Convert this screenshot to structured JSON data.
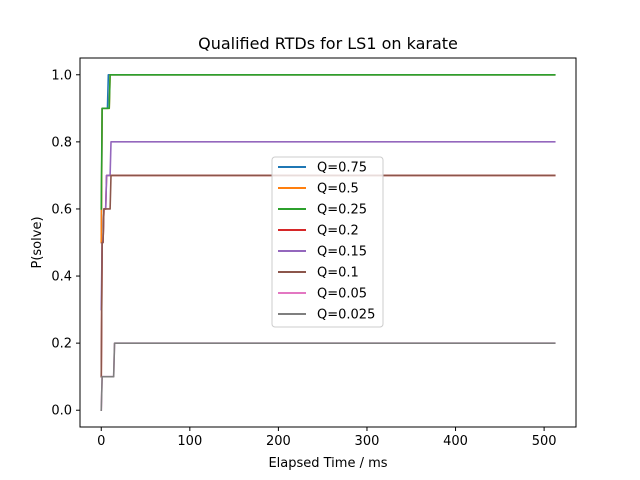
{
  "chart_data": {
    "type": "line",
    "title": "Qualified RTDs for LS1 on karate",
    "xlabel": "Elapsed Time / ms",
    "ylabel": "P(solve)",
    "xlim": [
      -24,
      536
    ],
    "ylim": [
      -0.05,
      1.05
    ],
    "xticks": [
      0,
      100,
      200,
      300,
      400,
      500
    ],
    "yticks": [
      0.0,
      0.2,
      0.4,
      0.6,
      0.8,
      1.0
    ],
    "xtick_labels": [
      "0",
      "100",
      "200",
      "300",
      "400",
      "500"
    ],
    "ytick_labels": [
      "0.0",
      "0.2",
      "0.4",
      "0.6",
      "0.8",
      "1.0"
    ],
    "grid": false,
    "legend_position": "center",
    "series": [
      {
        "name": "Q=0.75",
        "color": "#1f77b4",
        "x": [
          0,
          1,
          2,
          3,
          4,
          5,
          6,
          7,
          8,
          9,
          10,
          11,
          12,
          13,
          14,
          15,
          16,
          512
        ],
        "y": [
          0.5,
          0.9,
          0.9,
          0.9,
          0.9,
          0.9,
          0.9,
          0.9,
          1.0,
          1.0,
          1.0,
          1.0,
          1.0,
          1.0,
          1.0,
          1.0,
          1.0,
          1.0
        ]
      },
      {
        "name": "Q=0.5",
        "color": "#ff7f0e",
        "x": [
          0,
          1,
          2,
          3,
          4,
          5,
          6,
          7,
          8,
          9,
          10,
          11,
          12,
          13,
          14,
          15,
          16,
          512
        ],
        "y": [
          0.5,
          0.9,
          0.9,
          0.9,
          0.9,
          0.9,
          0.9,
          0.9,
          0.9,
          0.9,
          1.0,
          1.0,
          1.0,
          1.0,
          1.0,
          1.0,
          1.0,
          1.0
        ]
      },
      {
        "name": "Q=0.25",
        "color": "#2ca02c",
        "x": [
          0,
          1,
          2,
          3,
          4,
          5,
          6,
          7,
          8,
          9,
          10,
          11,
          12,
          13,
          14,
          15,
          16,
          512
        ],
        "y": [
          0.6,
          0.9,
          0.9,
          0.9,
          0.9,
          0.9,
          0.9,
          0.9,
          0.9,
          0.9,
          1.0,
          1.0,
          1.0,
          1.0,
          1.0,
          1.0,
          1.0,
          1.0
        ]
      },
      {
        "name": "Q=0.2",
        "color": "#d62728",
        "x": [
          0,
          1,
          2,
          3,
          4,
          5,
          6,
          7,
          8,
          9,
          10,
          11,
          12,
          13,
          14,
          15,
          16,
          512
        ],
        "y": [
          0.1,
          0.5,
          0.5,
          0.6,
          0.6,
          0.6,
          0.7,
          0.7,
          0.7,
          0.7,
          0.7,
          0.7,
          0.7,
          0.7,
          0.7,
          0.7,
          0.7,
          0.7
        ]
      },
      {
        "name": "Q=0.15",
        "color": "#9467bd",
        "x": [
          0,
          1,
          2,
          3,
          4,
          5,
          6,
          7,
          8,
          9,
          10,
          11,
          12,
          13,
          14,
          15,
          16,
          512
        ],
        "y": [
          0.3,
          0.5,
          0.5,
          0.6,
          0.6,
          0.6,
          0.7,
          0.7,
          0.7,
          0.7,
          0.7,
          0.8,
          0.8,
          0.8,
          0.8,
          0.8,
          0.8,
          0.8
        ]
      },
      {
        "name": "Q=0.1",
        "color": "#8c564b",
        "x": [
          0,
          1,
          2,
          3,
          4,
          5,
          6,
          7,
          8,
          9,
          10,
          11,
          12,
          13,
          14,
          15,
          16,
          512
        ],
        "y": [
          0.1,
          0.5,
          0.5,
          0.6,
          0.6,
          0.6,
          0.6,
          0.6,
          0.6,
          0.6,
          0.6,
          0.7,
          0.7,
          0.7,
          0.7,
          0.7,
          0.7,
          0.7
        ]
      },
      {
        "name": "Q=0.05",
        "color": "#e377c2",
        "x": [
          0,
          1,
          2,
          3,
          4,
          5,
          6,
          7,
          8,
          9,
          10,
          11,
          12,
          13,
          14,
          15,
          16,
          512
        ],
        "y": [
          0.0,
          0.1,
          0.1,
          0.1,
          0.1,
          0.1,
          0.1,
          0.1,
          0.1,
          0.1,
          0.1,
          0.1,
          0.1,
          0.1,
          0.1,
          0.2,
          0.2,
          0.2
        ]
      },
      {
        "name": "Q=0.025",
        "color": "#7f7f7f",
        "x": [
          0,
          1,
          2,
          3,
          4,
          5,
          6,
          7,
          8,
          9,
          10,
          11,
          12,
          13,
          14,
          15,
          16,
          512
        ],
        "y": [
          0.0,
          0.1,
          0.1,
          0.1,
          0.1,
          0.1,
          0.1,
          0.1,
          0.1,
          0.1,
          0.1,
          0.1,
          0.1,
          0.1,
          0.1,
          0.2,
          0.2,
          0.2
        ]
      }
    ]
  }
}
